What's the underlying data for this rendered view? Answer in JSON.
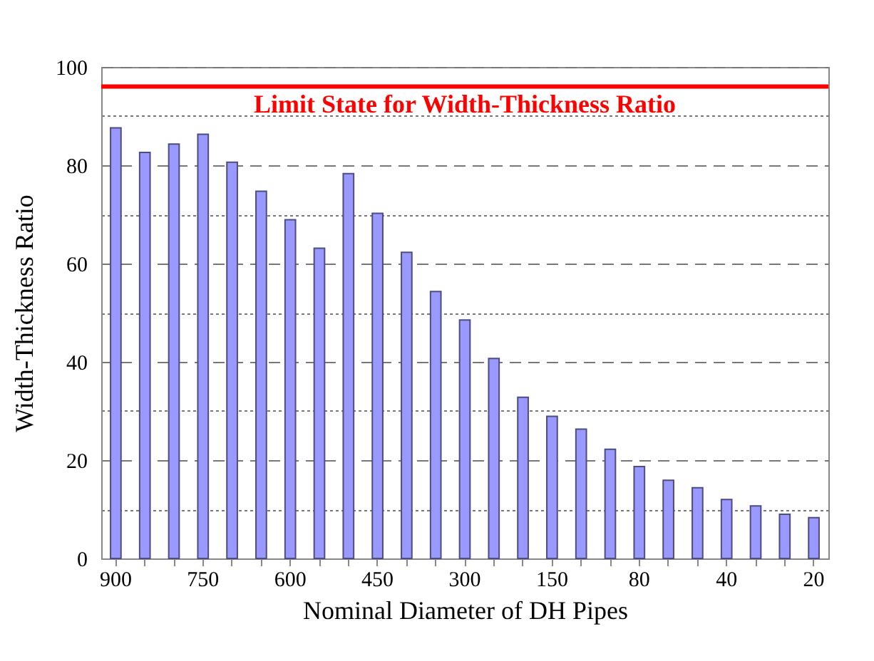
{
  "chart_data": {
    "type": "bar",
    "xlabel": "Nominal Diameter of DH Pipes",
    "ylabel": "Width-Thickness Ratio",
    "categories": [
      "900",
      null,
      null,
      "750",
      null,
      null,
      "600",
      null,
      null,
      "450",
      null,
      null,
      "300",
      null,
      null,
      "150",
      null,
      null,
      "80",
      null,
      null,
      "40",
      null,
      null,
      "20"
    ],
    "values": [
      87.6,
      82.6,
      84.3,
      86.3,
      80.6,
      74.7,
      68.9,
      63.1,
      78.3,
      70.2,
      62.3,
      54.3,
      48.5,
      40.7,
      32.8,
      28.9,
      26.3,
      22.2,
      18.7,
      15.9,
      14.4,
      12.0,
      10.7,
      9.0,
      8.3
    ],
    "color": "#9999ff",
    "ylim": [
      0,
      100
    ],
    "yticks": [
      0,
      {
        "value": 10,
        "label": null
      },
      20,
      {
        "value": 30,
        "label": null
      },
      40,
      {
        "value": 50,
        "label": null
      },
      60,
      {
        "value": 70,
        "label": null
      },
      80,
      {
        "value": 90,
        "label": null
      },
      100
    ],
    "grid": "y",
    "ref_lines": [
      {
        "axis": "y",
        "value": 96,
        "label": "Limit State for Width-Thickness Ratio",
        "color": "#ff0000"
      }
    ]
  }
}
